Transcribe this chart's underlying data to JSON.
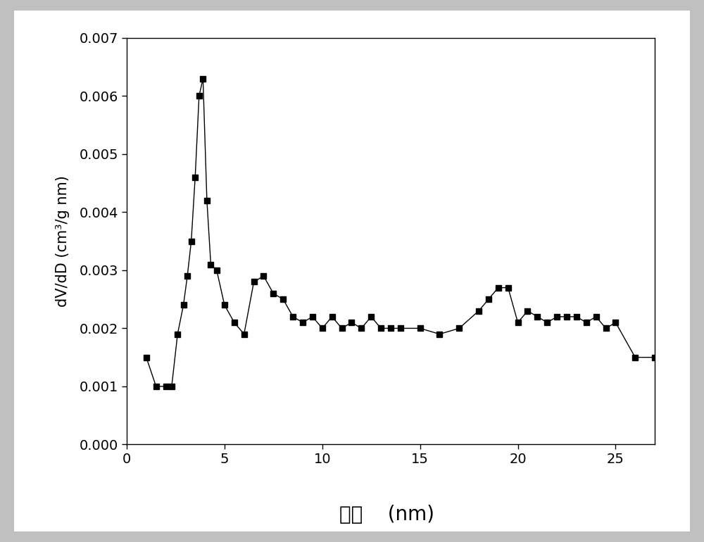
{
  "x": [
    1.0,
    1.5,
    2.0,
    2.3,
    2.6,
    2.9,
    3.1,
    3.3,
    3.5,
    3.7,
    3.9,
    4.1,
    4.3,
    4.6,
    5.0,
    5.5,
    6.0,
    6.5,
    7.0,
    7.5,
    8.0,
    8.5,
    9.0,
    9.5,
    10.0,
    10.5,
    11.0,
    11.5,
    12.0,
    12.5,
    13.0,
    13.5,
    14.0,
    15.0,
    16.0,
    17.0,
    18.0,
    18.5,
    19.0,
    19.5,
    20.0,
    20.5,
    21.0,
    21.5,
    22.0,
    22.5,
    23.0,
    23.5,
    24.0,
    24.5,
    25.0,
    26.0,
    27.0
  ],
  "y": [
    0.0015,
    0.001,
    0.001,
    0.001,
    0.0019,
    0.0024,
    0.0029,
    0.0035,
    0.0046,
    0.006,
    0.0063,
    0.0042,
    0.0031,
    0.003,
    0.0024,
    0.0021,
    0.0019,
    0.0028,
    0.0029,
    0.0026,
    0.0025,
    0.0022,
    0.0021,
    0.0022,
    0.002,
    0.0022,
    0.002,
    0.0021,
    0.002,
    0.0022,
    0.002,
    0.002,
    0.002,
    0.002,
    0.0019,
    0.002,
    0.0023,
    0.0025,
    0.0027,
    0.0027,
    0.0021,
    0.0023,
    0.0022,
    0.0021,
    0.0022,
    0.0022,
    0.0022,
    0.0021,
    0.0022,
    0.002,
    0.0021,
    0.0015,
    0.0015
  ],
  "xlabel_chinese": "孔径",
  "xlabel_unit": "(nm)",
  "ylabel": "dV/dD (cm³/g nm)",
  "xlim": [
    0,
    27
  ],
  "ylim": [
    0.0,
    0.007
  ],
  "xticks": [
    0,
    5,
    10,
    15,
    20,
    25
  ],
  "yticks": [
    0.0,
    0.001,
    0.002,
    0.003,
    0.004,
    0.005,
    0.006,
    0.007
  ],
  "line_color": "#000000",
  "marker": "s",
  "markersize": 6,
  "linewidth": 1.0,
  "bg_color": "#ffffff",
  "fig_bg_color": "#e8e8e8"
}
